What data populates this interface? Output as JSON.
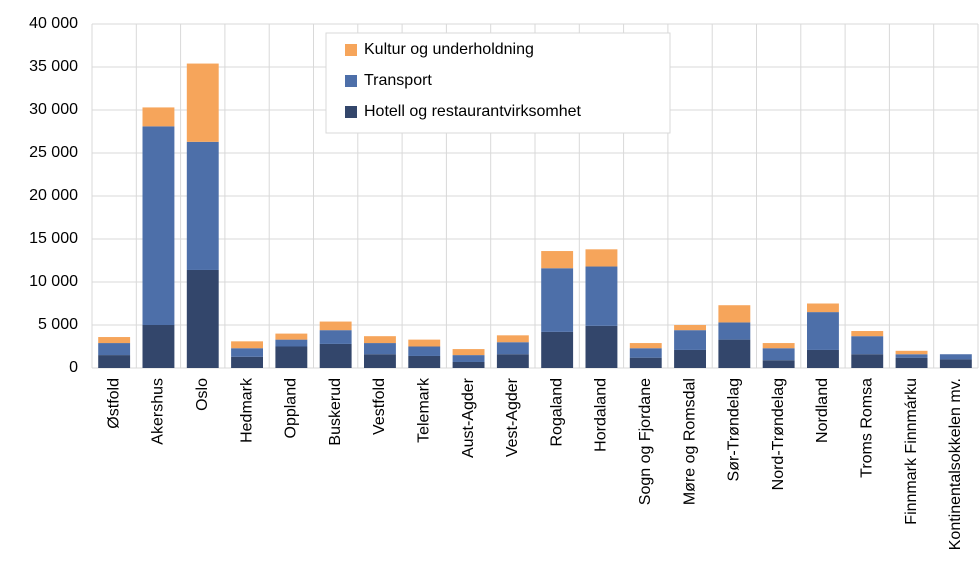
{
  "chart_data": {
    "type": "stacked_bar",
    "categories": [
      "Østfold",
      "Akershus",
      "Oslo",
      "Hedmark",
      "Oppland",
      "Buskerud",
      "Vestfold",
      "Telemark",
      "Aust-Agder",
      "Vest-Agder",
      "Rogaland",
      "Hordaland",
      "Sogn og Fjordane",
      "Møre og Romsdal",
      "Sør-Trøndelag",
      "Nord-Trøndelag",
      "Nordland",
      "Troms Romsa",
      "Finnmark Finnmárku",
      "Kontinentalsokkelen mv."
    ],
    "series": [
      {
        "name": "Hotell og restaurantvirksomhet",
        "color": "#33466b",
        "values": [
          1500,
          5000,
          11400,
          1300,
          2500,
          2800,
          1600,
          1400,
          700,
          1600,
          4200,
          4900,
          1200,
          2100,
          3300,
          900,
          2100,
          1600,
          1200,
          1000
        ]
      },
      {
        "name": "Transport",
        "color": "#4d6fa9",
        "values": [
          1400,
          23100,
          14900,
          1000,
          800,
          1600,
          1300,
          1100,
          800,
          1400,
          7400,
          6900,
          1100,
          2300,
          2000,
          1400,
          4400,
          2100,
          400,
          600
        ]
      },
      {
        "name": "Kultur og underholdning",
        "color": "#f6a55b",
        "values": [
          700,
          2200,
          9100,
          800,
          700,
          1000,
          800,
          800,
          700,
          800,
          2000,
          2000,
          600,
          600,
          2000,
          600,
          1000,
          600,
          400,
          0
        ]
      }
    ],
    "ylim": [
      0,
      40000
    ],
    "yticks": [
      0,
      {
        "value": 5000,
        "label": "5 000"
      },
      {
        "value": 10000,
        "label": "10 000"
      },
      {
        "value": 15000,
        "label": "15 000"
      },
      {
        "value": 20000,
        "label": "20 000"
      },
      {
        "value": 25000,
        "label": "25 000"
      },
      {
        "value": 30000,
        "label": "30 000"
      },
      {
        "value": 35000,
        "label": "35 000"
      },
      {
        "value": 40000,
        "label": "40 000"
      }
    ],
    "grid": true
  }
}
